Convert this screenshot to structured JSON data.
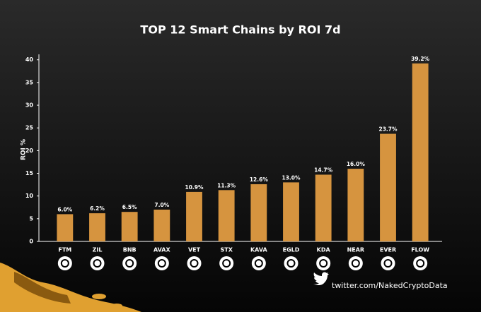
{
  "chart_data": {
    "type": "bar",
    "title": "TOP 12 Smart Chains by ROI 7d",
    "y_label": "ROI %",
    "categories": [
      "FTM",
      "ZIL",
      "BNB",
      "AVAX",
      "VET",
      "STX",
      "KAVA",
      "EGLD",
      "KDA",
      "NEAR",
      "EVER",
      "FLOW"
    ],
    "values": [
      6.0,
      6.2,
      6.5,
      7.0,
      10.9,
      11.3,
      12.6,
      13.0,
      14.7,
      16.0,
      23.7,
      39.2
    ],
    "value_labels": [
      "6.0%",
      "6.2%",
      "6.5%",
      "7.0%",
      "10.9%",
      "11.3%",
      "12.6%",
      "13.0%",
      "14.7%",
      "16.0%",
      "23.7%",
      "39.2%"
    ],
    "color": "#d6943f",
    "ylim": [
      0,
      41.2
    ],
    "yticks": [
      0,
      5,
      10,
      15,
      20,
      25,
      30,
      35,
      40
    ],
    "grid": false,
    "footer": "twitter.com/NakedCryptoData"
  }
}
